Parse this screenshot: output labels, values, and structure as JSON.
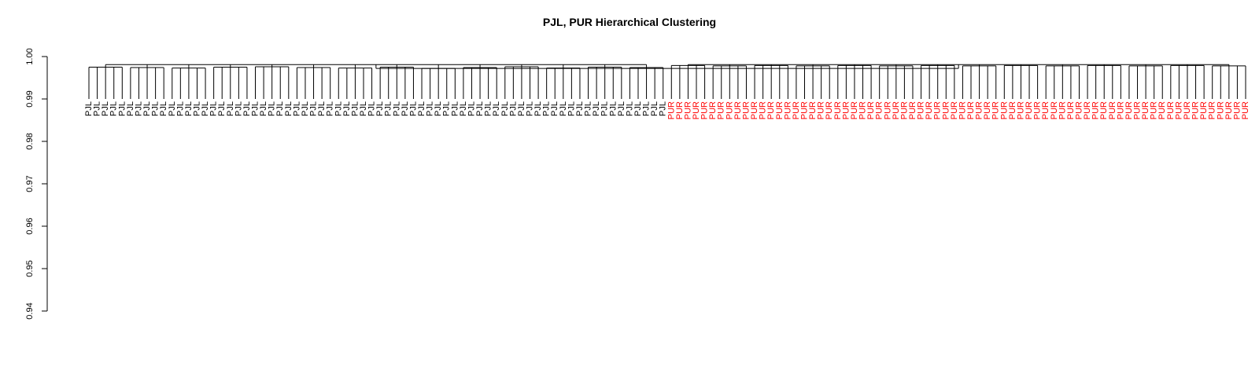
{
  "chart_data": {
    "type": "dendrogram",
    "title": "PJL, PUR Hierarchical Clustering",
    "xlabel": "",
    "ylabel": "",
    "ylim": [
      0.94,
      1.0
    ],
    "yticks": [
      "0.94",
      "0.95",
      "0.96",
      "0.97",
      "0.98",
      "0.99",
      "1.00"
    ],
    "root_height": 0.9972,
    "groups": [
      {
        "label": "PJL",
        "color": "#000000",
        "merge_height": 0.9981,
        "clusters": [
          {
            "height": 0.9975,
            "leaves": [
              0.99,
              0.99,
              0.99,
              0.99,
              0.99
            ]
          },
          {
            "height": 0.9974,
            "leaves": [
              0.99,
              0.99,
              0.99,
              0.99,
              0.99
            ]
          },
          {
            "height": 0.9973,
            "leaves": [
              0.99,
              0.99,
              0.99,
              0.99,
              0.99
            ]
          },
          {
            "height": 0.9975,
            "leaves": [
              0.99,
              0.99,
              0.99,
              0.99,
              0.99
            ]
          },
          {
            "height": 0.9976,
            "leaves": [
              0.99,
              0.99,
              0.99,
              0.99,
              0.99
            ]
          },
          {
            "height": 0.9974,
            "leaves": [
              0.99,
              0.99,
              0.99,
              0.99,
              0.99
            ]
          },
          {
            "height": 0.9973,
            "leaves": [
              0.99,
              0.99,
              0.99,
              0.99,
              0.99
            ]
          },
          {
            "height": 0.9975,
            "leaves": [
              0.99,
              0.99,
              0.99,
              0.99,
              0.99
            ]
          },
          {
            "height": 0.9972,
            "leaves": [
              0.99,
              0.99,
              0.99,
              0.99,
              0.99
            ]
          },
          {
            "height": 0.9974,
            "leaves": [
              0.99,
              0.99,
              0.99,
              0.99,
              0.99
            ]
          },
          {
            "height": 0.9976,
            "leaves": [
              0.99,
              0.99,
              0.99,
              0.99,
              0.99
            ]
          },
          {
            "height": 0.9973,
            "leaves": [
              0.99,
              0.99,
              0.99,
              0.99,
              0.99
            ]
          },
          {
            "height": 0.9975,
            "leaves": [
              0.99,
              0.99,
              0.99,
              0.99,
              0.99
            ]
          },
          {
            "height": 0.9974,
            "leaves": [
              0.99,
              0.99,
              0.99,
              0.99,
              0.99
            ]
          }
        ]
      },
      {
        "label": "PUR",
        "color": "#ff0000",
        "merge_height": 0.9981,
        "clusters": [
          {
            "height": 0.9979,
            "leaves": [
              0.99,
              0.99,
              0.99,
              0.99,
              0.99
            ]
          },
          {
            "height": 0.9978,
            "leaves": [
              0.99,
              0.99,
              0.99,
              0.99,
              0.99
            ]
          },
          {
            "height": 0.9979,
            "leaves": [
              0.99,
              0.99,
              0.99,
              0.99,
              0.99
            ]
          },
          {
            "height": 0.9978,
            "leaves": [
              0.99,
              0.99,
              0.99,
              0.99,
              0.99
            ]
          },
          {
            "height": 0.9979,
            "leaves": [
              0.99,
              0.99,
              0.99,
              0.99,
              0.99
            ]
          },
          {
            "height": 0.9978,
            "leaves": [
              0.99,
              0.99,
              0.99,
              0.99,
              0.99
            ]
          },
          {
            "height": 0.9979,
            "leaves": [
              0.99,
              0.99,
              0.99,
              0.99,
              0.99
            ]
          },
          {
            "height": 0.9978,
            "leaves": [
              0.99,
              0.99,
              0.99,
              0.99,
              0.99
            ]
          },
          {
            "height": 0.9979,
            "leaves": [
              0.99,
              0.99,
              0.99,
              0.99,
              0.99
            ]
          },
          {
            "height": 0.9978,
            "leaves": [
              0.99,
              0.99,
              0.99,
              0.99,
              0.99
            ]
          },
          {
            "height": 0.9979,
            "leaves": [
              0.99,
              0.99,
              0.99,
              0.99,
              0.99
            ]
          },
          {
            "height": 0.9978,
            "leaves": [
              0.99,
              0.99,
              0.99,
              0.99,
              0.99
            ]
          },
          {
            "height": 0.9979,
            "leaves": [
              0.99,
              0.99,
              0.99,
              0.99,
              0.99
            ]
          },
          {
            "height": 0.9978,
            "leaves": [
              0.99,
              0.99,
              0.99,
              0.99,
              0.99
            ]
          }
        ]
      }
    ]
  }
}
